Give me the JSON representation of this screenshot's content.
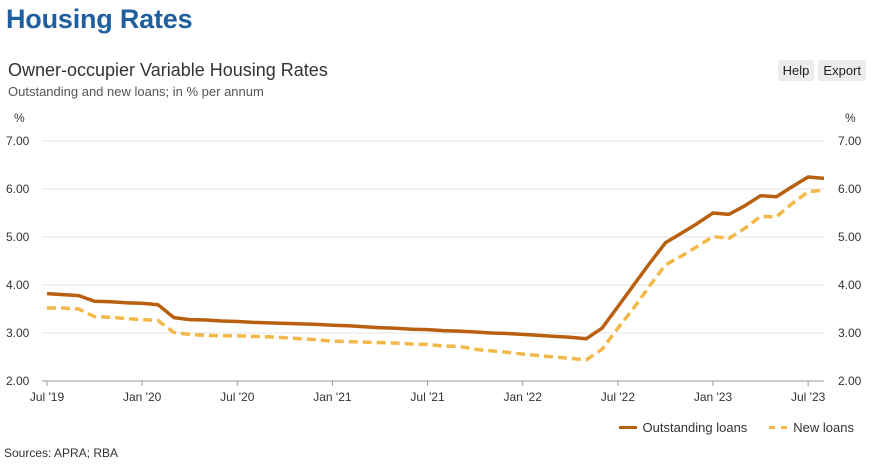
{
  "page_title": "Housing Rates",
  "toolbar": {
    "help_label": "Help",
    "export_label": "Export"
  },
  "source": "Sources: APRA; RBA",
  "chart_data": {
    "type": "line",
    "title": "Owner-occupier Variable Housing Rates",
    "subtitle": "Outstanding and new loans; in % per annum",
    "ylabel_left": "%",
    "ylabel_right": "%",
    "ylim": [
      2,
      7
    ],
    "yticks": [
      "2.00",
      "3.00",
      "4.00",
      "5.00",
      "6.00",
      "7.00"
    ],
    "xlim": [
      "2019-07",
      "2023-08"
    ],
    "xticks": [
      {
        "label": "Jul '19",
        "x": "2019-07"
      },
      {
        "label": "Jan '20",
        "x": "2020-01"
      },
      {
        "label": "Jul '20",
        "x": "2020-07"
      },
      {
        "label": "Jan '21",
        "x": "2021-01"
      },
      {
        "label": "Jul '21",
        "x": "2021-07"
      },
      {
        "label": "Jan '22",
        "x": "2022-01"
      },
      {
        "label": "Jul '22",
        "x": "2022-07"
      },
      {
        "label": "Jan '23",
        "x": "2023-01"
      },
      {
        "label": "Jul '23",
        "x": "2023-07"
      }
    ],
    "grid": true,
    "legend_position": "bottom-right",
    "x": [
      "2019-07",
      "2019-08",
      "2019-09",
      "2019-10",
      "2019-11",
      "2019-12",
      "2020-01",
      "2020-02",
      "2020-03",
      "2020-04",
      "2020-05",
      "2020-06",
      "2020-07",
      "2020-08",
      "2020-09",
      "2020-10",
      "2020-11",
      "2020-12",
      "2021-01",
      "2021-02",
      "2021-03",
      "2021-04",
      "2021-05",
      "2021-06",
      "2021-07",
      "2021-08",
      "2021-09",
      "2021-10",
      "2021-11",
      "2021-12",
      "2022-01",
      "2022-02",
      "2022-03",
      "2022-04",
      "2022-05",
      "2022-06",
      "2022-07",
      "2022-08",
      "2022-09",
      "2022-10",
      "2022-11",
      "2022-12",
      "2023-01",
      "2023-02",
      "2023-03",
      "2023-04",
      "2023-05",
      "2023-06",
      "2023-07",
      "2023-08"
    ],
    "series": [
      {
        "name": "Outstanding loans",
        "color": "#b8600f",
        "style": "solid",
        "values": [
          3.82,
          3.8,
          3.78,
          3.66,
          3.65,
          3.63,
          3.62,
          3.59,
          3.32,
          3.28,
          3.27,
          3.25,
          3.24,
          3.22,
          3.21,
          3.2,
          3.19,
          3.18,
          3.16,
          3.15,
          3.13,
          3.11,
          3.1,
          3.08,
          3.07,
          3.05,
          3.04,
          3.02,
          3.0,
          2.99,
          2.97,
          2.95,
          2.93,
          2.91,
          2.88,
          3.1,
          3.55,
          4.0,
          4.45,
          4.88,
          5.08,
          5.28,
          5.5,
          5.47,
          5.65,
          5.86,
          5.84,
          6.05,
          6.25,
          6.22
        ]
      },
      {
        "name": "New loans",
        "color": "#f3b84a",
        "style": "dashed",
        "values": [
          3.52,
          3.52,
          3.5,
          3.34,
          3.33,
          3.3,
          3.28,
          3.26,
          3.01,
          2.97,
          2.95,
          2.94,
          2.94,
          2.93,
          2.92,
          2.9,
          2.88,
          2.86,
          2.83,
          2.82,
          2.81,
          2.8,
          2.79,
          2.77,
          2.76,
          2.73,
          2.72,
          2.66,
          2.63,
          2.6,
          2.56,
          2.53,
          2.5,
          2.47,
          2.44,
          2.66,
          3.1,
          3.52,
          3.98,
          4.42,
          4.6,
          4.8,
          5.01,
          4.97,
          5.18,
          5.43,
          5.42,
          5.7,
          5.94,
          5.98
        ]
      }
    ]
  }
}
